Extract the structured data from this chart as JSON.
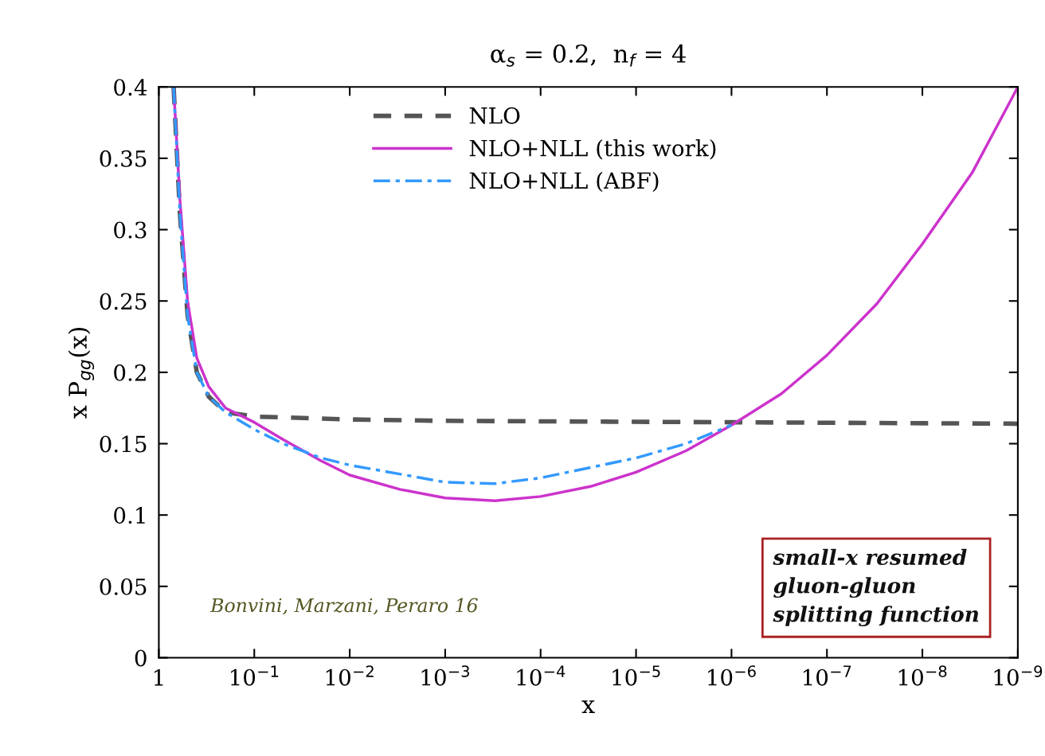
{
  "chart_data": {
    "type": "line",
    "title": "α$_{s}$ = 0.2,  n$_{f}$ = 4",
    "xlabel": "x",
    "ylabel": "x P$_{gg}$(x)",
    "log": "x",
    "xlim": [
      1,
      1e-09
    ],
    "xticks": [
      1,
      {
        "value": 0.1,
        "label": "10$^{−1}$"
      },
      {
        "value": 0.01,
        "label": "10$^{−2}$"
      },
      {
        "value": 0.001,
        "label": "10$^{−3}$"
      },
      {
        "value": 0.0001,
        "label": "10$^{−4}$"
      },
      {
        "value": 1e-05,
        "label": "10$^{−5}$"
      },
      {
        "value": 1e-06,
        "label": "10$^{−6}$"
      },
      {
        "value": 1e-07,
        "label": "10$^{−7}$"
      },
      {
        "value": 1e-08,
        "label": "10$^{−8}$"
      },
      {
        "value": 1e-09,
        "label": "10$^{−9}$"
      }
    ],
    "ylim": [
      0,
      0.4
    ],
    "yticks": [
      0,
      0.05,
      0.1,
      0.15,
      0.2,
      0.25,
      0.3,
      0.35,
      0.4
    ],
    "grid": false,
    "legend": "top",
    "marker": "none",
    "series": [
      {
        "name": "NLO",
        "color": "#555555",
        "line_style": "dashed",
        "x": [
          0.7,
          0.6,
          0.5,
          0.4,
          0.3,
          0.2,
          0.1,
          0.01,
          0.001,
          1e-06,
          1e-09
        ],
        "values": [
          0.4,
          0.31,
          0.24,
          0.2,
          0.183,
          0.172,
          0.169,
          0.167,
          0.166,
          0.165,
          0.164
        ]
      },
      {
        "name": "NLO+NLL (this work)",
        "color": "#cc33cc",
        "line_style": "solid",
        "x": [
          0.7,
          0.6,
          0.5,
          0.4,
          0.3,
          0.2,
          0.1,
          0.05,
          0.02,
          0.01,
          0.003,
          0.001,
          0.0003,
          0.0001,
          3e-05,
          1e-05,
          3e-06,
          1e-06,
          3e-07,
          1e-07,
          3e-08,
          1e-08,
          3e-09,
          1e-09
        ],
        "values": [
          0.4,
          0.32,
          0.25,
          0.21,
          0.19,
          0.175,
          0.165,
          0.153,
          0.138,
          0.128,
          0.118,
          0.112,
          0.11,
          0.113,
          0.12,
          0.13,
          0.145,
          0.163,
          0.185,
          0.212,
          0.248,
          0.29,
          0.34,
          0.4
        ]
      },
      {
        "name": "NLO+NLL (ABF)",
        "color": "#3399ff",
        "line_style": "dashdot",
        "x": [
          0.7,
          0.6,
          0.5,
          0.4,
          0.3,
          0.2,
          0.1,
          0.05,
          0.02,
          0.01,
          0.001,
          0.0003,
          0.0001,
          1e-05,
          3e-06,
          1e-06
        ],
        "values": [
          0.4,
          0.31,
          0.24,
          0.2,
          0.183,
          0.172,
          0.16,
          0.15,
          0.14,
          0.135,
          0.123,
          0.122,
          0.126,
          0.14,
          0.15,
          0.163
        ]
      }
    ],
    "annotations": [
      "Bonvini, Marzani, Peraro 16",
      "small-x resumed\ngluon-gluon\nsplitting function"
    ]
  }
}
